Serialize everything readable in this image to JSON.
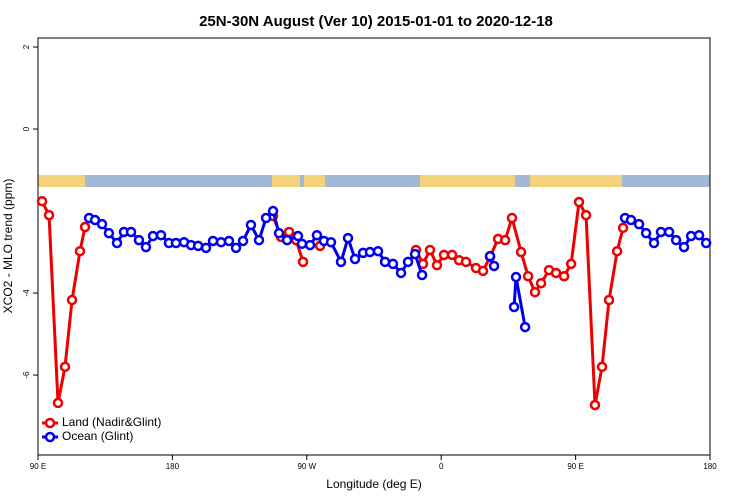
{
  "chart_data": {
    "type": "line",
    "title": "25N-30N August (Ver 10)   2015-01-01 to 2020-12-18",
    "x_label": "Longitude (deg E)",
    "y_label": "XCO2 - MLO trend (ppm)",
    "xlim": [
      90,
      540
    ],
    "xticks": [
      {
        "value": 90,
        "label": "90 E"
      },
      180,
      {
        "value": 270,
        "label": "90 W"
      },
      {
        "value": 360,
        "label": "0"
      },
      {
        "value": 450,
        "label": "90 E"
      },
      {
        "value": 540,
        "label": "180"
      }
    ],
    "ylim": [
      -7.95,
      2.22
    ],
    "yticks": [
      -6,
      -4,
      0,
      2
    ],
    "legend": "bottomleft",
    "series": [
      {
        "name": "Land (Nadir&Glint)",
        "color": "#ee0000",
        "x": [
          92.7,
          97.4,
          103.4,
          108.1,
          112.8,
          118.1,
          121.5,
          null,
          247.4,
          252.7,
          258.1,
          262.8,
          267.5,
          null,
          278.9,
          null,
          343.1,
          347.8,
          352.5,
          357.2,
          361.9,
          367.3,
          372.0,
          376.6,
          383.3,
          388.0,
          392.7,
          398.1,
          402.8,
          407.4,
          413.5,
          418.2,
          422.8,
          426.9,
          432.2,
          436.9,
          442.3,
          447.0,
          452.3,
          457.0,
          463.0,
          467.7,
          472.4,
          477.8,
          481.8
        ],
        "values": [
          -1.76,
          -2.1,
          -6.68,
          -5.8,
          -4.17,
          -2.98,
          -2.39,
          null,
          -2.12,
          -2.63,
          -2.51,
          -2.71,
          -3.24,
          null,
          -2.85,
          null,
          -2.95,
          -3.29,
          -2.95,
          -3.32,
          -3.07,
          -3.07,
          -3.2,
          -3.24,
          -3.39,
          -3.46,
          -3.12,
          -2.68,
          -2.71,
          -2.17,
          -3.0,
          -3.59,
          -3.98,
          -3.76,
          -3.44,
          -3.51,
          -3.59,
          -3.29,
          -1.78,
          -2.1,
          -6.73,
          -5.8,
          -4.17,
          -2.98,
          -2.41
        ]
      },
      {
        "name": "Ocean (Glint)",
        "color": "#0000ee",
        "x": [
          124.2,
          128.2,
          132.9,
          137.5,
          142.9,
          147.6,
          152.3,
          157.6,
          162.3,
          167.0,
          172.4,
          177.7,
          182.4,
          187.8,
          192.5,
          197.2,
          202.5,
          207.2,
          212.6,
          217.9,
          222.6,
          227.3,
          232.6,
          238.0,
          242.7,
          247.4,
          251.4,
          256.8,
          264.1,
          266.8,
          272.2,
          276.8,
          281.5,
          286.2,
          292.9,
          297.6,
          302.3,
          307.7,
          312.3,
          317.7,
          322.4,
          327.7,
          333.1,
          337.8,
          342.5,
          347.2,
          null,
          392.7,
          395.4,
          null,
          408.8,
          410.1,
          416.2,
          null,
          483.1,
          487.1,
          492.5,
          497.2,
          502.5,
          507.2,
          512.6,
          517.3,
          522.6,
          527.3,
          532.7,
          537.4
        ],
        "values": [
          -2.17,
          -2.22,
          -2.32,
          -2.54,
          -2.78,
          -2.51,
          -2.51,
          -2.71,
          -2.88,
          -2.61,
          -2.59,
          -2.78,
          -2.78,
          -2.76,
          -2.83,
          -2.85,
          -2.9,
          -2.73,
          -2.76,
          -2.73,
          -2.9,
          -2.73,
          -2.34,
          -2.71,
          -2.17,
          -2.0,
          -2.54,
          -2.71,
          -2.61,
          -2.8,
          -2.83,
          -2.59,
          -2.73,
          -2.76,
          -3.24,
          -2.66,
          -3.17,
          -3.02,
          -3.0,
          -2.98,
          -3.24,
          -3.29,
          -3.51,
          -3.24,
          -3.05,
          -3.56,
          null,
          -3.1,
          -3.34,
          null,
          -4.34,
          -3.61,
          -4.83,
          null,
          -2.17,
          -2.22,
          -2.32,
          -2.54,
          -2.78,
          -2.51,
          -2.51,
          -2.71,
          -2.88,
          -2.61,
          -2.59,
          -2.78
        ]
      }
    ]
  }
}
